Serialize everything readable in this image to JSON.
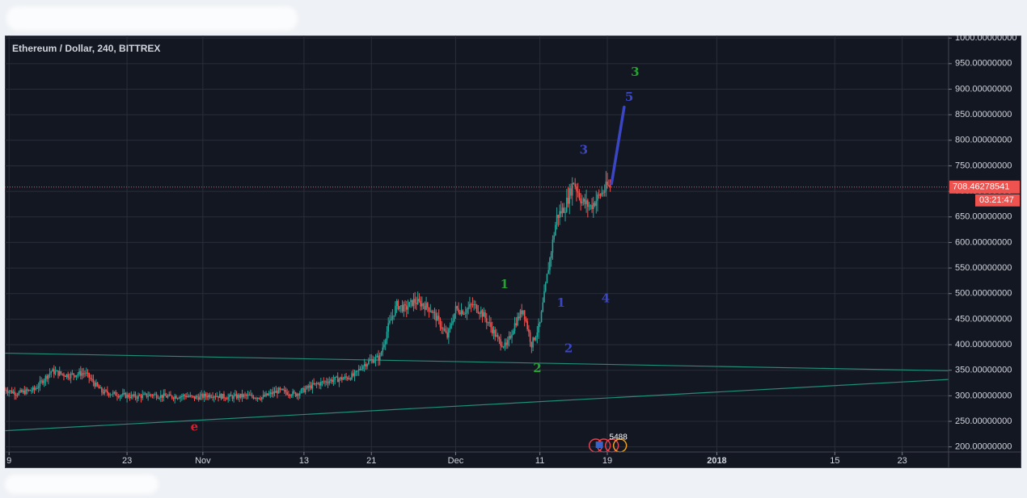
{
  "chart_data": {
    "type": "candlestick",
    "title": "Ethereum / Dollar, 240, BITTREX",
    "ylim": [
      190,
      1005
    ],
    "y_ticks": [
      "1000.00000000",
      "950.00000000",
      "900.00000000",
      "850.00000000",
      "800.00000000",
      "750.00000000",
      "700.00000000",
      "650.00000000",
      "600.00000000",
      "550.00000000",
      "500.00000000",
      "450.00000000",
      "400.00000000",
      "350.00000000",
      "300.00000000",
      "250.00000000",
      "200.00000000"
    ],
    "y_tick_values": [
      1000,
      950,
      900,
      850,
      800,
      750,
      700,
      650,
      600,
      550,
      500,
      450,
      400,
      350,
      300,
      250,
      200
    ],
    "x_axis": {
      "ticks": [
        {
          "label": "9",
          "day": 9,
          "bold": false
        },
        {
          "label": "23",
          "day": 23,
          "bold": false
        },
        {
          "label": "Nov",
          "day": 32,
          "bold": false
        },
        {
          "label": "13",
          "day": 44,
          "bold": false
        },
        {
          "label": "21",
          "day": 52,
          "bold": false
        },
        {
          "label": "Dec",
          "day": 62,
          "bold": false
        },
        {
          "label": "11",
          "day": 72,
          "bold": false
        },
        {
          "label": "19",
          "day": 80,
          "bold": false
        },
        {
          "label": "2018",
          "day": 93,
          "bold": true
        },
        {
          "label": "15",
          "day": 107,
          "bold": false
        },
        {
          "label": "23",
          "day": 115,
          "bold": false
        }
      ]
    },
    "price_path": [
      [
        8.5,
        312
      ],
      [
        10,
        305
      ],
      [
        12,
        312
      ],
      [
        14,
        348
      ],
      [
        16,
        340
      ],
      [
        18,
        345
      ],
      [
        20,
        308
      ],
      [
        22,
        302
      ],
      [
        24,
        298
      ],
      [
        26,
        302
      ],
      [
        28,
        298
      ],
      [
        30,
        300
      ],
      [
        31,
        296
      ],
      [
        33,
        302
      ],
      [
        35,
        297
      ],
      [
        37,
        300
      ],
      [
        39,
        297
      ],
      [
        41,
        310
      ],
      [
        43,
        303
      ],
      [
        45,
        320
      ],
      [
        47,
        330
      ],
      [
        49,
        335
      ],
      [
        50,
        340
      ],
      [
        51,
        360
      ],
      [
        52,
        370
      ],
      [
        53,
        375
      ],
      [
        54,
        435
      ],
      [
        55,
        478
      ],
      [
        56,
        470
      ],
      [
        57,
        485
      ],
      [
        58,
        480
      ],
      [
        59,
        470
      ],
      [
        60,
        445
      ],
      [
        61,
        415
      ],
      [
        62,
        470
      ],
      [
        63,
        465
      ],
      [
        64,
        478
      ],
      [
        65,
        465
      ],
      [
        66,
        440
      ],
      [
        67,
        410
      ],
      [
        68,
        395
      ],
      [
        69,
        440
      ],
      [
        70,
        470
      ],
      [
        71,
        400
      ],
      [
        72,
        440
      ],
      [
        73,
        550
      ],
      [
        74,
        650
      ],
      [
        75,
        670
      ],
      [
        76,
        720
      ],
      [
        77,
        680
      ],
      [
        78,
        670
      ],
      [
        79,
        690
      ],
      [
        80,
        710
      ],
      [
        80.5,
        708.5
      ]
    ],
    "last_price": "708.46278541",
    "countdown": "03:21:47",
    "trendlines": [
      {
        "from": [
          0,
          386
        ],
        "to": [
          120.5,
          349
        ],
        "color": "#1f8f7a"
      },
      {
        "from": [
          0,
          224
        ],
        "to": [
          120.5,
          332
        ],
        "color": "#1f8f7a"
      }
    ],
    "projection": {
      "from": [
        80.5,
        715
      ],
      "to": [
        82,
        865
      ],
      "color": "#3b46c4"
    },
    "wave_labels": [
      {
        "text": "e",
        "x": 31,
        "y": 238,
        "color": "#d81e2c"
      },
      {
        "text": "1",
        "x": 67.8,
        "y": 517,
        "color": "#26a232"
      },
      {
        "text": "2",
        "x": 71.7,
        "y": 353,
        "color": "#26a232"
      },
      {
        "text": "3",
        "x": 83.3,
        "y": 932,
        "color": "#26a232"
      },
      {
        "text": "1",
        "x": 74.5,
        "y": 481,
        "color": "#3b46c4"
      },
      {
        "text": "2",
        "x": 75.4,
        "y": 391,
        "color": "#3b46c4"
      },
      {
        "text": "3",
        "x": 77.2,
        "y": 780,
        "color": "#3b46c4"
      },
      {
        "text": "4",
        "x": 79.8,
        "y": 489,
        "color": "#3b46c4"
      },
      {
        "text": "5",
        "x": 82.6,
        "y": 883,
        "color": "#3b46c4"
      }
    ],
    "indicator_badge": "5488",
    "grid": true
  },
  "colors": {
    "background": "#131722",
    "grid": "#2a2e39",
    "axis_text": "#d1d4dc",
    "up": "#26a69a",
    "down": "#ef5350",
    "price_label_bg": "#ef5350"
  }
}
